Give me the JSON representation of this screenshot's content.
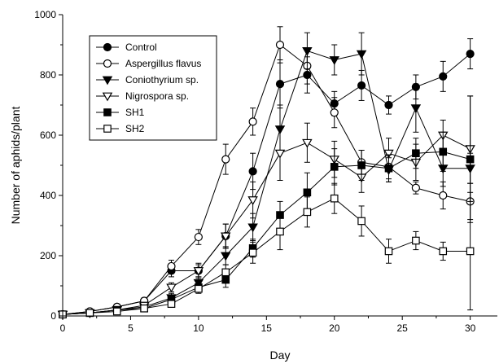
{
  "chart_data": {
    "type": "line",
    "title": "",
    "xlabel": "Day",
    "ylabel": "Number of aphids/plant",
    "xlim": [
      0,
      32
    ],
    "ylim": [
      0,
      1000
    ],
    "xticks": [
      "0",
      "5",
      "10",
      "15",
      "20",
      "25",
      "30"
    ],
    "yticks": [
      "0",
      "200",
      "400",
      "600",
      "800",
      "1000"
    ],
    "grid": false,
    "legend_position": "top-left",
    "series": [
      {
        "name": "Control",
        "marker": "circle-filled",
        "color": "#000000",
        "x": [
          0,
          2,
          4,
          6,
          8,
          10,
          12,
          14,
          16,
          18,
          20,
          22,
          24,
          26,
          28,
          30
        ],
        "y": [
          5,
          15,
          30,
          50,
          150,
          150,
          265,
          480,
          770,
          800,
          705,
          765,
          700,
          760,
          795,
          870
        ],
        "err": [
          3,
          5,
          8,
          8,
          20,
          20,
          40,
          60,
          80,
          60,
          40,
          50,
          30,
          40,
          50,
          50
        ]
      },
      {
        "name": "Aspergillus flavus",
        "marker": "circle-open",
        "color": "#000000",
        "x": [
          0,
          2,
          4,
          6,
          8,
          10,
          12,
          14,
          16,
          18,
          20,
          22,
          24,
          26,
          28,
          30
        ],
        "y": [
          5,
          15,
          30,
          50,
          165,
          262,
          520,
          645,
          900,
          830,
          675,
          510,
          495,
          425,
          400,
          380
        ],
        "err": [
          3,
          5,
          8,
          10,
          20,
          25,
          50,
          45,
          60,
          60,
          50,
          40,
          40,
          20,
          45,
          60
        ]
      },
      {
        "name": "Coniothyrium sp.",
        "marker": "triangle-down-filled",
        "color": "#000000",
        "x": [
          0,
          2,
          4,
          6,
          8,
          10,
          12,
          14,
          16,
          18,
          20,
          22,
          24,
          26,
          28,
          30
        ],
        "y": [
          5,
          10,
          20,
          30,
          60,
          110,
          200,
          295,
          620,
          880,
          850,
          870,
          485,
          690,
          490,
          490
        ],
        "err": [
          3,
          5,
          5,
          8,
          15,
          20,
          30,
          45,
          80,
          60,
          50,
          70,
          40,
          80,
          60,
          50
        ]
      },
      {
        "name": "Nigrospora sp.",
        "marker": "triangle-down-open",
        "color": "#000000",
        "x": [
          0,
          2,
          4,
          6,
          8,
          10,
          12,
          14,
          16,
          18,
          20,
          22,
          24,
          26,
          28,
          30
        ],
        "y": [
          5,
          10,
          20,
          35,
          95,
          150,
          265,
          385,
          540,
          575,
          520,
          460,
          540,
          510,
          600,
          555
        ],
        "err": [
          3,
          5,
          5,
          8,
          15,
          25,
          40,
          60,
          90,
          65,
          60,
          50,
          50,
          60,
          50,
          175
        ]
      },
      {
        "name": "SH1",
        "marker": "square-filled",
        "color": "#000000",
        "x": [
          0,
          2,
          4,
          6,
          8,
          10,
          12,
          14,
          16,
          18,
          20,
          22,
          24,
          26,
          28,
          30
        ],
        "y": [
          5,
          10,
          20,
          25,
          55,
          95,
          120,
          225,
          335,
          410,
          495,
          500,
          490,
          540,
          545,
          520
        ],
        "err": [
          3,
          5,
          5,
          8,
          12,
          15,
          25,
          30,
          45,
          65,
          60,
          50,
          45,
          50,
          65,
          210
        ]
      },
      {
        "name": "SH2",
        "marker": "square-open",
        "color": "#000000",
        "x": [
          0,
          2,
          4,
          6,
          8,
          10,
          12,
          14,
          16,
          18,
          20,
          22,
          24,
          26,
          28,
          30
        ],
        "y": [
          5,
          10,
          15,
          25,
          40,
          90,
          145,
          210,
          280,
          345,
          390,
          315,
          215,
          250,
          215,
          215
        ],
        "err": [
          3,
          5,
          5,
          8,
          10,
          15,
          25,
          35,
          60,
          50,
          50,
          50,
          40,
          30,
          30,
          195
        ]
      }
    ]
  }
}
